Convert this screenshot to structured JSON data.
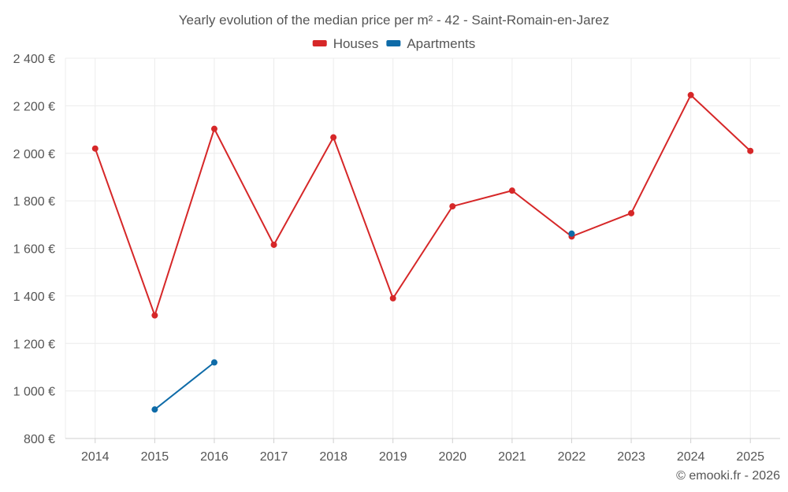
{
  "chart_data": {
    "type": "line",
    "title": "Yearly evolution of the median price per m² - 42 - Saint-Romain-en-Jarez",
    "categories": [
      "2014",
      "2015",
      "2016",
      "2017",
      "2018",
      "2019",
      "2020",
      "2021",
      "2022",
      "2023",
      "2024",
      "2025"
    ],
    "series": [
      {
        "name": "Houses",
        "color": "#d62728",
        "values": [
          2020,
          1318,
          2103,
          1615,
          2067,
          1390,
          1777,
          1843,
          1650,
          1748,
          2245,
          2010
        ]
      },
      {
        "name": "Apartments",
        "color": "#0e6ba8",
        "values": [
          null,
          922,
          1120,
          null,
          null,
          null,
          null,
          null,
          1662,
          null,
          null,
          null
        ]
      }
    ],
    "ylim": [
      800,
      2400
    ],
    "yticks": [
      800,
      1000,
      1200,
      1400,
      1600,
      1800,
      2000,
      2200,
      2400
    ],
    "ytick_labels": [
      "800 €",
      "1 000 €",
      "1 200 €",
      "1 400 €",
      "1 600 €",
      "1 800 €",
      "2 000 €",
      "2 200 €",
      "2 400 €"
    ],
    "xlabel": "",
    "ylabel": "",
    "legend_position": "top-center",
    "grid": true
  },
  "credit": "© emooki.fr - 2026"
}
